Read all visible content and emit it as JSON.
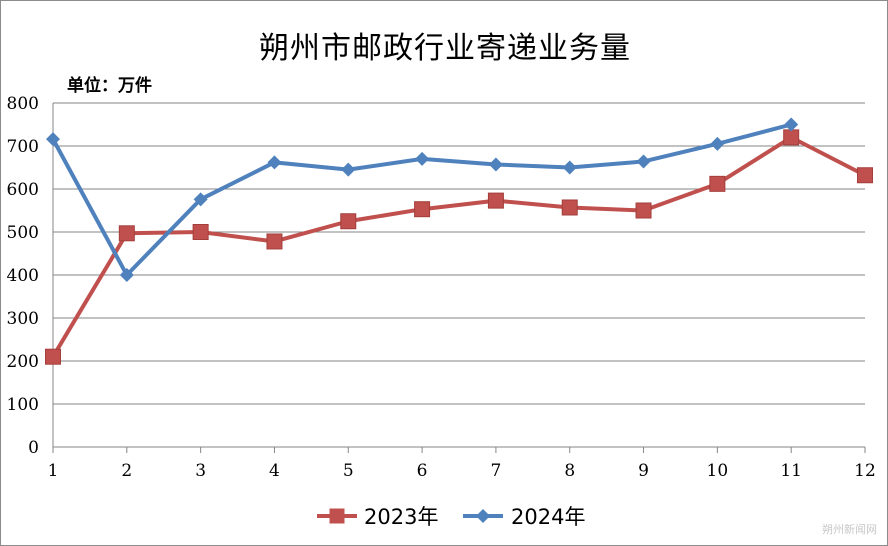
{
  "chart_data": {
    "type": "line",
    "title": "朔州市邮政行业寄递业务量",
    "unit_label": "单位：万件",
    "x": [
      "1",
      "2",
      "3",
      "4",
      "5",
      "6",
      "7",
      "8",
      "9",
      "10",
      "11",
      "12"
    ],
    "ylim": [
      0,
      800
    ],
    "yticks": [
      "0",
      "100",
      "200",
      "300",
      "400",
      "500",
      "600",
      "700",
      "800"
    ],
    "grid": true,
    "legend_position": "bottom",
    "series": [
      {
        "name": "2023年",
        "color": "#c0504d",
        "marker": "square",
        "values": [
          210,
          497,
          500,
          478,
          525,
          553,
          573,
          557,
          550,
          612,
          720,
          632
        ]
      },
      {
        "name": "2024年",
        "color": "#4f81bd",
        "marker": "diamond",
        "values": [
          716,
          400,
          576,
          662,
          645,
          670,
          657,
          650,
          664,
          705,
          750,
          null
        ]
      }
    ]
  },
  "watermark": "朔州新闻网"
}
